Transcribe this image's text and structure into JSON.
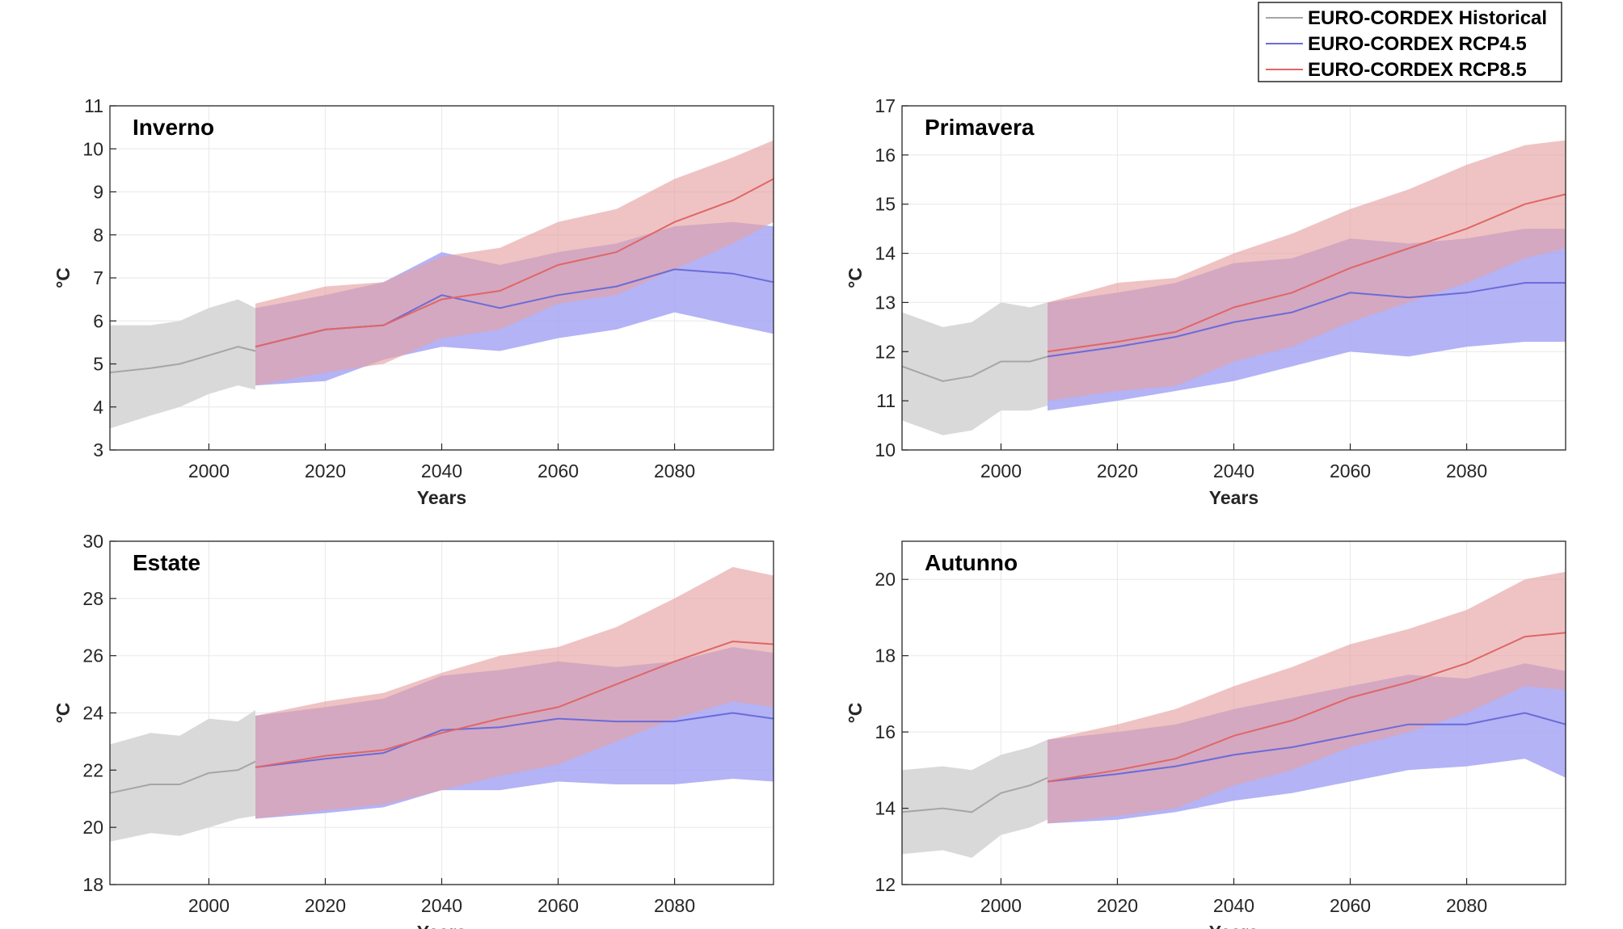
{
  "colors": {
    "historical_line": "#a6a6a6",
    "historical_band": "#d9d9d9",
    "rcp45_line": "#6b6bd9",
    "rcp45_band": "#a6a6f5",
    "rcp85_line": "#e06666",
    "rcp85_band": "#e6a3a3"
  },
  "legend": {
    "placement": "top-right",
    "entries": [
      {
        "label": "EURO-CORDEX Historical",
        "series": "historical"
      },
      {
        "label": "EURO-CORDEX RCP4.5",
        "series": "rcp45"
      },
      {
        "label": "EURO-CORDEX RCP8.5",
        "series": "rcp85"
      }
    ]
  },
  "chart_data": [
    {
      "type": "area",
      "title": "Inverno",
      "xlabel": "Years",
      "ylabel": "°C",
      "xlim": [
        1983,
        2097
      ],
      "ylim": [
        3,
        11
      ],
      "xticks": [
        2000,
        2020,
        2040,
        2060,
        2080
      ],
      "yticks": [
        3,
        4,
        5,
        6,
        7,
        8,
        9,
        10,
        11
      ],
      "grid": true,
      "series": [
        {
          "key": "historical",
          "x": [
            1983,
            1990,
            1995,
            2000,
            2005,
            2008
          ],
          "mean": [
            4.8,
            4.9,
            5.0,
            5.2,
            5.4,
            5.3
          ],
          "lower": [
            3.5,
            3.8,
            4.0,
            4.3,
            4.5,
            4.4
          ],
          "upper": [
            5.9,
            5.9,
            6.0,
            6.3,
            6.5,
            6.3
          ]
        },
        {
          "key": "rcp45",
          "x": [
            2008,
            2020,
            2030,
            2040,
            2050,
            2060,
            2070,
            2080,
            2090,
            2097
          ],
          "mean": [
            5.4,
            5.8,
            5.9,
            6.6,
            6.3,
            6.6,
            6.8,
            7.2,
            7.1,
            6.9
          ],
          "lower": [
            4.5,
            4.6,
            5.1,
            5.4,
            5.3,
            5.6,
            5.8,
            6.2,
            5.9,
            5.7
          ],
          "upper": [
            6.3,
            6.6,
            6.9,
            7.6,
            7.3,
            7.6,
            7.8,
            8.2,
            8.3,
            8.2
          ]
        },
        {
          "key": "rcp85",
          "x": [
            2008,
            2020,
            2030,
            2040,
            2050,
            2060,
            2070,
            2080,
            2090,
            2097
          ],
          "mean": [
            5.4,
            5.8,
            5.9,
            6.5,
            6.7,
            7.3,
            7.6,
            8.3,
            8.8,
            9.3
          ],
          "lower": [
            4.5,
            4.8,
            5.0,
            5.6,
            5.8,
            6.4,
            6.6,
            7.2,
            7.8,
            8.3
          ],
          "upper": [
            6.4,
            6.8,
            6.9,
            7.5,
            7.7,
            8.3,
            8.6,
            9.3,
            9.8,
            10.2
          ]
        }
      ]
    },
    {
      "type": "area",
      "title": "Primavera",
      "xlabel": "Years",
      "ylabel": "°C",
      "xlim": [
        1983,
        2097
      ],
      "ylim": [
        10,
        17
      ],
      "xticks": [
        2000,
        2020,
        2040,
        2060,
        2080
      ],
      "yticks": [
        10,
        11,
        12,
        13,
        14,
        15,
        16,
        17
      ],
      "grid": true,
      "series": [
        {
          "key": "historical",
          "x": [
            1983,
            1990,
            1995,
            2000,
            2005,
            2008
          ],
          "mean": [
            11.7,
            11.4,
            11.5,
            11.8,
            11.8,
            11.9
          ],
          "lower": [
            10.6,
            10.3,
            10.4,
            10.8,
            10.8,
            10.9
          ],
          "upper": [
            12.8,
            12.5,
            12.6,
            13.0,
            12.9,
            13.0
          ]
        },
        {
          "key": "rcp45",
          "x": [
            2008,
            2020,
            2030,
            2040,
            2050,
            2060,
            2070,
            2080,
            2090,
            2097
          ],
          "mean": [
            11.9,
            12.1,
            12.3,
            12.6,
            12.8,
            13.2,
            13.1,
            13.2,
            13.4,
            13.4
          ],
          "lower": [
            10.8,
            11.0,
            11.2,
            11.4,
            11.7,
            12.0,
            11.9,
            12.1,
            12.2,
            12.2
          ],
          "upper": [
            13.0,
            13.2,
            13.4,
            13.8,
            13.9,
            14.3,
            14.2,
            14.3,
            14.5,
            14.5
          ]
        },
        {
          "key": "rcp85",
          "x": [
            2008,
            2020,
            2030,
            2040,
            2050,
            2060,
            2070,
            2080,
            2090,
            2097
          ],
          "mean": [
            12.0,
            12.2,
            12.4,
            12.9,
            13.2,
            13.7,
            14.1,
            14.5,
            15.0,
            15.2
          ],
          "lower": [
            11.0,
            11.2,
            11.3,
            11.8,
            12.1,
            12.6,
            13.0,
            13.4,
            13.9,
            14.1
          ],
          "upper": [
            13.0,
            13.4,
            13.5,
            14.0,
            14.4,
            14.9,
            15.3,
            15.8,
            16.2,
            16.3
          ]
        }
      ]
    },
    {
      "type": "area",
      "title": "Estate",
      "xlabel": "Years",
      "ylabel": "°C",
      "xlim": [
        1983,
        2097
      ],
      "ylim": [
        18,
        30
      ],
      "xticks": [
        2000,
        2020,
        2040,
        2060,
        2080
      ],
      "yticks": [
        18,
        20,
        22,
        24,
        26,
        28,
        30
      ],
      "grid": true,
      "series": [
        {
          "key": "historical",
          "x": [
            1983,
            1990,
            1995,
            2000,
            2005,
            2008
          ],
          "mean": [
            21.2,
            21.5,
            21.5,
            21.9,
            22.0,
            22.3
          ],
          "lower": [
            19.5,
            19.8,
            19.7,
            20.0,
            20.3,
            20.4
          ],
          "upper": [
            22.9,
            23.3,
            23.2,
            23.8,
            23.7,
            24.1
          ]
        },
        {
          "key": "rcp45",
          "x": [
            2008,
            2020,
            2030,
            2040,
            2050,
            2060,
            2070,
            2080,
            2090,
            2097
          ],
          "mean": [
            22.1,
            22.4,
            22.6,
            23.4,
            23.5,
            23.8,
            23.7,
            23.7,
            24.0,
            23.8
          ],
          "lower": [
            20.3,
            20.5,
            20.7,
            21.3,
            21.3,
            21.6,
            21.5,
            21.5,
            21.7,
            21.6
          ],
          "upper": [
            23.9,
            24.2,
            24.5,
            25.3,
            25.5,
            25.8,
            25.6,
            25.8,
            26.3,
            26.1
          ]
        },
        {
          "key": "rcp85",
          "x": [
            2008,
            2020,
            2030,
            2040,
            2050,
            2060,
            2070,
            2080,
            2090,
            2097
          ],
          "mean": [
            22.1,
            22.5,
            22.7,
            23.3,
            23.8,
            24.2,
            25.0,
            25.8,
            26.5,
            26.4
          ],
          "lower": [
            20.3,
            20.6,
            20.8,
            21.3,
            21.8,
            22.2,
            23.0,
            23.8,
            24.4,
            24.2
          ],
          "upper": [
            23.9,
            24.4,
            24.7,
            25.4,
            26.0,
            26.3,
            27.0,
            28.0,
            29.1,
            28.8
          ]
        }
      ]
    },
    {
      "type": "area",
      "title": "Autunno",
      "xlabel": "Years",
      "ylabel": "°C",
      "xlim": [
        1983,
        2097
      ],
      "ylim": [
        12,
        21
      ],
      "xticks": [
        2000,
        2020,
        2040,
        2060,
        2080
      ],
      "yticks": [
        12,
        14,
        16,
        18,
        20
      ],
      "grid": true,
      "series": [
        {
          "key": "historical",
          "x": [
            1983,
            1990,
            1995,
            2000,
            2005,
            2008
          ],
          "mean": [
            13.9,
            14.0,
            13.9,
            14.4,
            14.6,
            14.8
          ],
          "lower": [
            12.8,
            12.9,
            12.7,
            13.3,
            13.5,
            13.7
          ],
          "upper": [
            15.0,
            15.1,
            15.0,
            15.4,
            15.6,
            15.8
          ]
        },
        {
          "key": "rcp45",
          "x": [
            2008,
            2020,
            2030,
            2040,
            2050,
            2060,
            2070,
            2080,
            2090,
            2097
          ],
          "mean": [
            14.7,
            14.9,
            15.1,
            15.4,
            15.6,
            15.9,
            16.2,
            16.2,
            16.5,
            16.2
          ],
          "lower": [
            13.6,
            13.7,
            13.9,
            14.2,
            14.4,
            14.7,
            15.0,
            15.1,
            15.3,
            14.8
          ],
          "upper": [
            15.8,
            16.0,
            16.2,
            16.6,
            16.9,
            17.2,
            17.5,
            17.4,
            17.8,
            17.6
          ]
        },
        {
          "key": "rcp85",
          "x": [
            2008,
            2020,
            2030,
            2040,
            2050,
            2060,
            2070,
            2080,
            2090,
            2097
          ],
          "mean": [
            14.7,
            15.0,
            15.3,
            15.9,
            16.3,
            16.9,
            17.3,
            17.8,
            18.5,
            18.6
          ],
          "lower": [
            13.6,
            13.8,
            14.0,
            14.6,
            15.0,
            15.6,
            16.0,
            16.5,
            17.2,
            17.1
          ],
          "upper": [
            15.8,
            16.2,
            16.6,
            17.2,
            17.7,
            18.3,
            18.7,
            19.2,
            20.0,
            20.2
          ]
        }
      ]
    }
  ]
}
